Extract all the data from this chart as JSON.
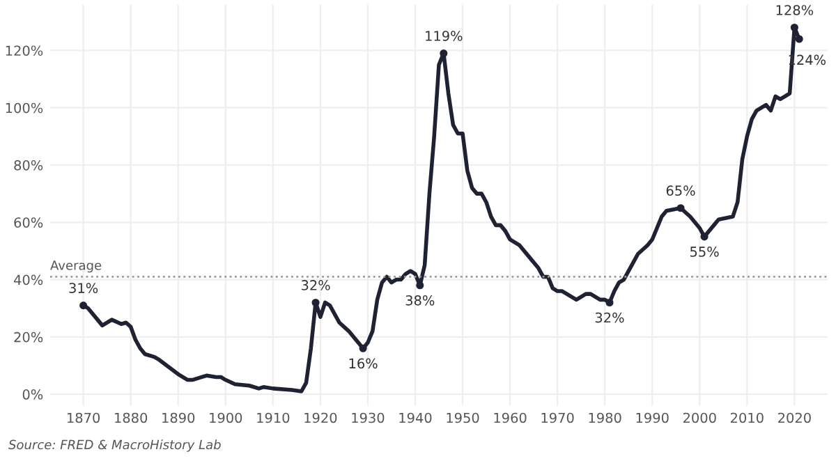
{
  "chart_data": {
    "type": "line",
    "x": [
      1870,
      1871,
      1873,
      1874,
      1876,
      1878,
      1879,
      1880,
      1881,
      1882,
      1883,
      1885,
      1886,
      1888,
      1890,
      1892,
      1893,
      1895,
      1896,
      1898,
      1899,
      1900,
      1902,
      1905,
      1907,
      1908,
      1910,
      1914,
      1916,
      1917,
      1918,
      1919,
      1920,
      1921,
      1922,
      1924,
      1926,
      1927,
      1929,
      1930,
      1931,
      1932,
      1933,
      1934,
      1935,
      1936,
      1937,
      1938,
      1939,
      1940,
      1941,
      1942,
      1943,
      1944,
      1945,
      1946,
      1947,
      1948,
      1949,
      1950,
      1951,
      1952,
      1953,
      1954,
      1955,
      1956,
      1957,
      1958,
      1959,
      1960,
      1962,
      1964,
      1966,
      1967,
      1968,
      1969,
      1970,
      1971,
      1974,
      1976,
      1977,
      1979,
      1980,
      1981,
      1982,
      1983,
      1984,
      1986,
      1987,
      1989,
      1990,
      1991,
      1992,
      1993,
      1996,
      1998,
      2000,
      2001,
      2002,
      2003,
      2004,
      2007,
      2008,
      2009,
      2010,
      2011,
      2012,
      2014,
      2015,
      2016,
      2017,
      2018,
      2019,
      2020,
      2021
    ],
    "series": [
      {
        "color": "#1f2233",
        "values": [
          31,
          30,
          26,
          24,
          26,
          24.5,
          25,
          23.5,
          19,
          16,
          14,
          13,
          12,
          9.5,
          7,
          5,
          5,
          6,
          6.5,
          6,
          6,
          5,
          3.5,
          3,
          2,
          2.5,
          2,
          1.5,
          1,
          4,
          16,
          32,
          27,
          32,
          31,
          25,
          22,
          20,
          16,
          18,
          22,
          33,
          39,
          41,
          39,
          40,
          40,
          42,
          43,
          42,
          38,
          45,
          70,
          90,
          115,
          119,
          105,
          94,
          91,
          91,
          78,
          72,
          70,
          70,
          67,
          62,
          59,
          59,
          57,
          54,
          52,
          48,
          44,
          41,
          41,
          37,
          36,
          36,
          33,
          35,
          35,
          33,
          33,
          32,
          36,
          39,
          40,
          46,
          49,
          52,
          54,
          58,
          62,
          64,
          65,
          62,
          58,
          55,
          57,
          59,
          61,
          62,
          67,
          82,
          90,
          96,
          99,
          101,
          99,
          104,
          103,
          104,
          105,
          128,
          124
        ]
      }
    ],
    "xlim": [
      1863,
      2027
    ],
    "xticks": [
      1870,
      1880,
      1890,
      1900,
      1910,
      1920,
      1930,
      1940,
      1950,
      1960,
      1970,
      1980,
      1990,
      2000,
      2010,
      2020
    ],
    "ylim": [
      -4,
      136
    ],
    "yticks": [
      {
        "value": 0,
        "label": "0%"
      },
      {
        "value": 20,
        "label": "20%"
      },
      {
        "value": 40,
        "label": "40%"
      },
      {
        "value": 60,
        "label": "60%"
      },
      {
        "value": 80,
        "label": "80%"
      },
      {
        "value": 100,
        "label": "100%"
      },
      {
        "value": 120,
        "label": "120%"
      }
    ],
    "grid": true,
    "ref_lines": [
      {
        "axis": "y",
        "value": 41,
        "label": "Average",
        "color": "#999999",
        "line_style": "dotted"
      }
    ],
    "annotations": [
      {
        "text": "31%",
        "x": 1870,
        "y": 31
      },
      {
        "text": "32%",
        "x": 1919,
        "y": 32
      },
      {
        "text": "16%",
        "x": 1929,
        "y": 16
      },
      {
        "text": "38%",
        "x": 1941,
        "y": 38
      },
      {
        "text": "119%",
        "x": 1946,
        "y": 119
      },
      {
        "text": "32%",
        "x": 1981,
        "y": 32
      },
      {
        "text": "65%",
        "x": 1996,
        "y": 65
      },
      {
        "text": "55%",
        "x": 2001,
        "y": 55
      },
      {
        "text": "128%",
        "x": 2020,
        "y": 128
      },
      {
        "text": "124%",
        "x": 2021,
        "y": 124
      },
      "Source: FRED & MacroHistory Lab"
    ]
  }
}
